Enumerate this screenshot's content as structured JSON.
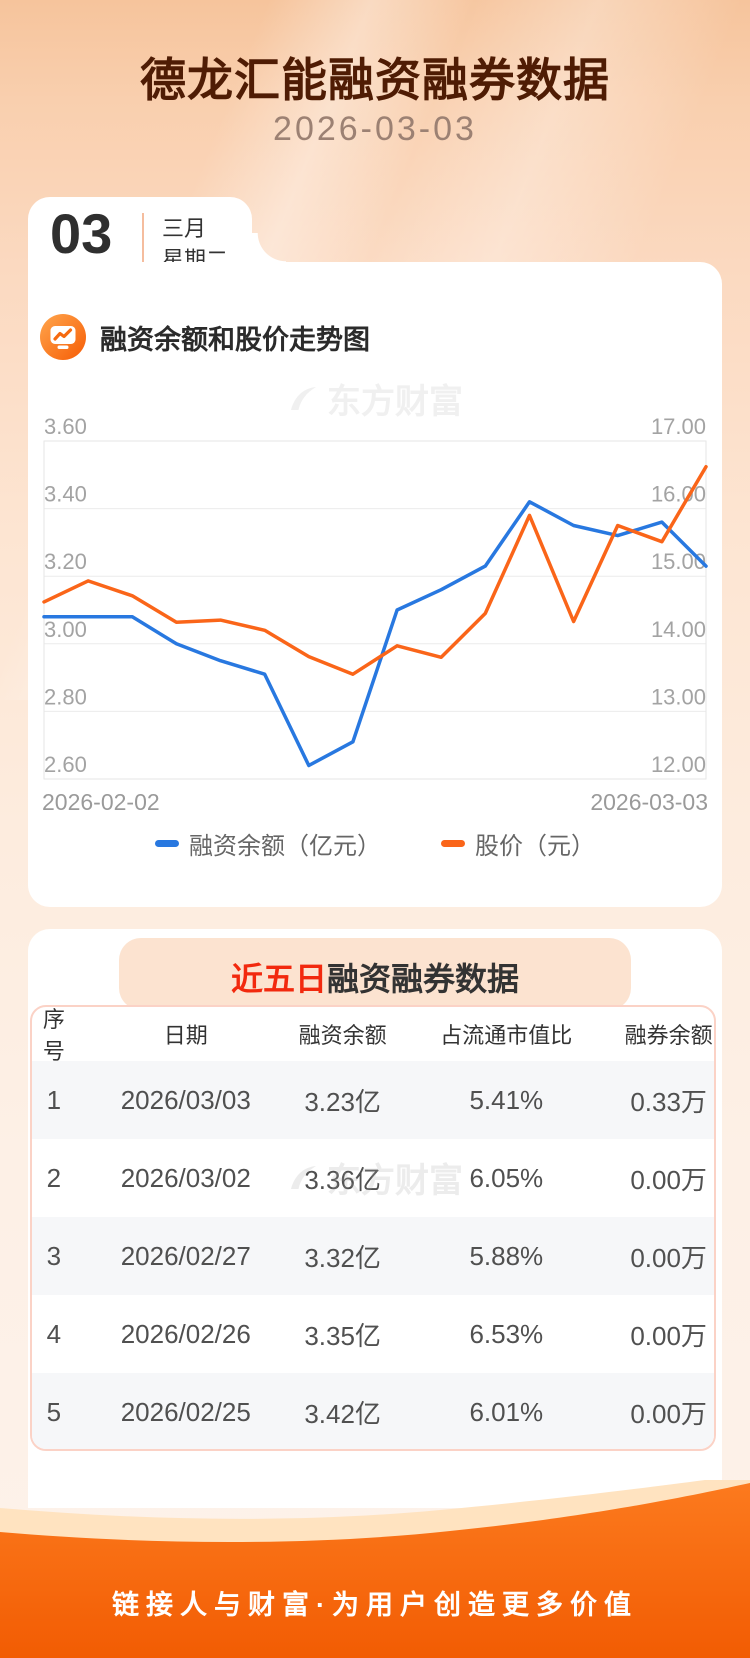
{
  "header": {
    "title": "德龙汇能融资融券数据",
    "date": "2026-03-03",
    "date_card": {
      "day": "03",
      "month": "三月",
      "weekday": "星期二"
    }
  },
  "chart_section": {
    "title": "融资余额和股价走势图",
    "icon": "trend-monitor-icon"
  },
  "watermark": {
    "logo": "swoosh-logo-icon",
    "text": "东方财富"
  },
  "chart_data": {
    "type": "line",
    "x_labels": [
      "2026-02-02",
      "2026-03-03"
    ],
    "grid": "horizontal",
    "legend_position": "bottom",
    "left_axis": {
      "min": 2.6,
      "max": 3.6,
      "ticks": [
        "3.60",
        "3.40",
        "3.20",
        "3.00",
        "2.80",
        "2.60"
      ]
    },
    "right_axis": {
      "min": 12,
      "max": 17,
      "ticks": [
        "17.00",
        "16.00",
        "15.00",
        "14.00",
        "13.00",
        "12.00"
      ]
    },
    "series": [
      {
        "name": "融资余额（亿元）",
        "axis": "left",
        "color": "#2878e0",
        "values": [
          3.08,
          3.08,
          3.08,
          3.0,
          2.95,
          2.91,
          2.64,
          2.71,
          3.1,
          3.16,
          3.23,
          3.42,
          3.35,
          3.32,
          3.36,
          3.23
        ]
      },
      {
        "name": "股价（元）",
        "axis": "right",
        "color": "#fa6519",
        "values": [
          14.62,
          14.93,
          14.71,
          14.32,
          14.35,
          14.2,
          13.81,
          13.55,
          13.97,
          13.8,
          14.45,
          15.9,
          14.33,
          15.75,
          15.51,
          16.62
        ]
      }
    ]
  },
  "table_section": {
    "title_highlight": "近五日",
    "title_rest": "融资融券数据",
    "columns": [
      "序号",
      "日期",
      "融资余额",
      "占流通市值比",
      "融券余额"
    ],
    "rows": [
      [
        "1",
        "2026/03/03",
        "3.23亿",
        "5.41%",
        "0.33万"
      ],
      [
        "2",
        "2026/03/02",
        "3.36亿",
        "6.05%",
        "0.00万"
      ],
      [
        "3",
        "2026/02/27",
        "3.32亿",
        "5.88%",
        "0.00万"
      ],
      [
        "4",
        "2026/02/26",
        "3.35亿",
        "6.53%",
        "0.00万"
      ],
      [
        "5",
        "2026/02/25",
        "3.42亿",
        "6.01%",
        "0.00万"
      ]
    ]
  },
  "footer": {
    "slogan": "链接人与财富·为用户创造更多价值"
  },
  "colors": {
    "line_blue": "#2878e0",
    "line_orange": "#fa6519",
    "highlight_red": "#f2290e",
    "footer_orange": "#f8690f",
    "title_brown": "#4f1c04",
    "ribbon_peach": "#fce3d0",
    "table_border_pink": "#fbd2c6",
    "row_shade": "#f6f7f9"
  }
}
